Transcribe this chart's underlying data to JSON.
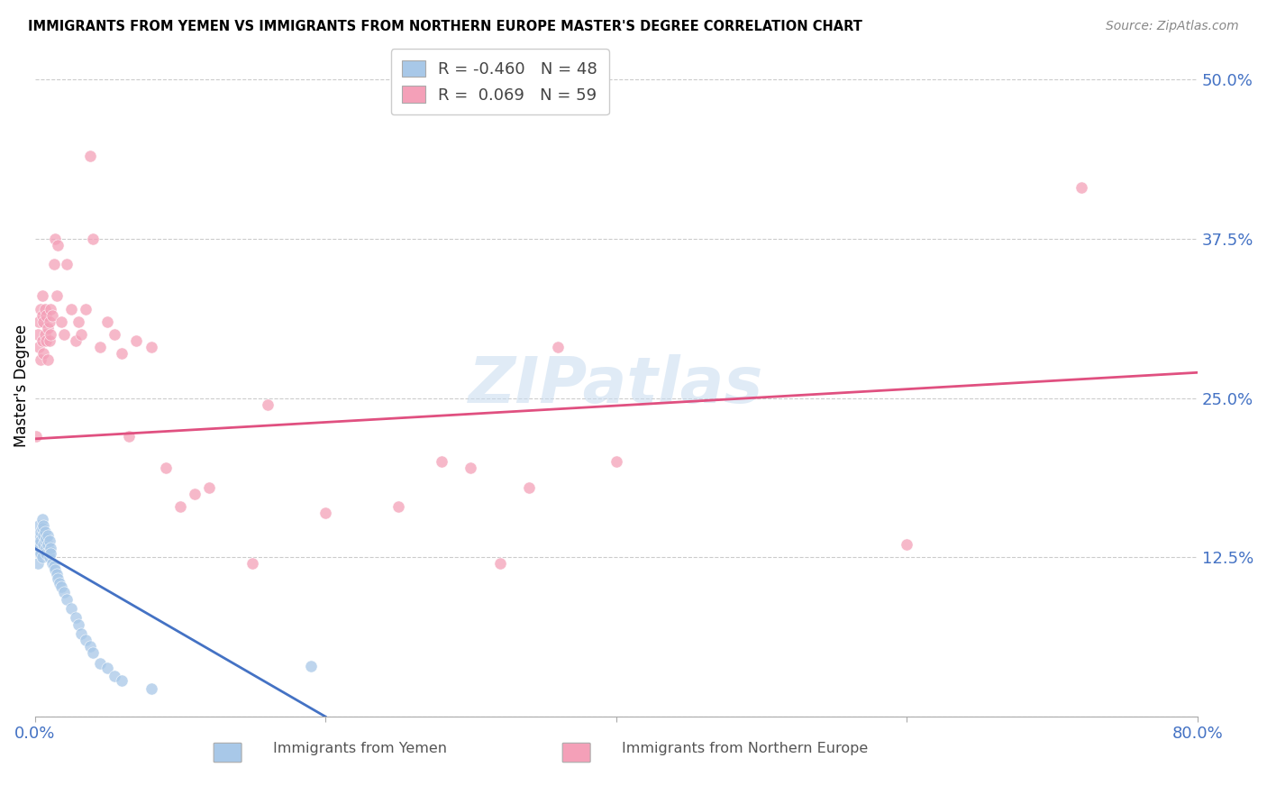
{
  "title": "IMMIGRANTS FROM YEMEN VS IMMIGRANTS FROM NORTHERN EUROPE MASTER'S DEGREE CORRELATION CHART",
  "source": "Source: ZipAtlas.com",
  "ylabel": "Master's Degree",
  "color_blue": "#A8C8E8",
  "color_pink": "#F4A0B8",
  "color_blue_line": "#4472C4",
  "color_pink_line": "#E05080",
  "color_axis_labels": "#4472C4",
  "xlim": [
    0.0,
    0.8
  ],
  "ylim": [
    0.0,
    0.52
  ],
  "yemen_x": [
    0.001,
    0.002,
    0.002,
    0.003,
    0.003,
    0.004,
    0.004,
    0.004,
    0.005,
    0.005,
    0.005,
    0.006,
    0.006,
    0.006,
    0.007,
    0.007,
    0.008,
    0.008,
    0.008,
    0.009,
    0.009,
    0.01,
    0.01,
    0.01,
    0.011,
    0.011,
    0.012,
    0.013,
    0.014,
    0.015,
    0.016,
    0.017,
    0.018,
    0.02,
    0.022,
    0.025,
    0.028,
    0.03,
    0.032,
    0.035,
    0.038,
    0.04,
    0.045,
    0.05,
    0.055,
    0.06,
    0.08,
    0.19
  ],
  "yemen_y": [
    0.13,
    0.14,
    0.12,
    0.15,
    0.135,
    0.145,
    0.128,
    0.138,
    0.155,
    0.148,
    0.125,
    0.142,
    0.135,
    0.15,
    0.138,
    0.145,
    0.132,
    0.14,
    0.128,
    0.135,
    0.142,
    0.13,
    0.138,
    0.125,
    0.132,
    0.128,
    0.12,
    0.118,
    0.115,
    0.112,
    0.108,
    0.105,
    0.102,
    0.098,
    0.092,
    0.085,
    0.078,
    0.072,
    0.065,
    0.06,
    0.055,
    0.05,
    0.042,
    0.038,
    0.032,
    0.028,
    0.022,
    0.04
  ],
  "ne_x": [
    0.001,
    0.002,
    0.003,
    0.003,
    0.004,
    0.004,
    0.005,
    0.005,
    0.005,
    0.006,
    0.006,
    0.007,
    0.007,
    0.008,
    0.008,
    0.009,
    0.009,
    0.01,
    0.01,
    0.011,
    0.011,
    0.012,
    0.013,
    0.014,
    0.015,
    0.016,
    0.018,
    0.02,
    0.022,
    0.025,
    0.028,
    0.03,
    0.032,
    0.035,
    0.038,
    0.04,
    0.045,
    0.05,
    0.055,
    0.06,
    0.065,
    0.07,
    0.08,
    0.09,
    0.1,
    0.11,
    0.12,
    0.15,
    0.16,
    0.2,
    0.25,
    0.28,
    0.3,
    0.32,
    0.34,
    0.36,
    0.4,
    0.6,
    0.72
  ],
  "ne_y": [
    0.22,
    0.3,
    0.31,
    0.29,
    0.32,
    0.28,
    0.33,
    0.295,
    0.315,
    0.285,
    0.31,
    0.3,
    0.32,
    0.295,
    0.315,
    0.305,
    0.28,
    0.31,
    0.295,
    0.32,
    0.3,
    0.315,
    0.355,
    0.375,
    0.33,
    0.37,
    0.31,
    0.3,
    0.355,
    0.32,
    0.295,
    0.31,
    0.3,
    0.32,
    0.44,
    0.375,
    0.29,
    0.31,
    0.3,
    0.285,
    0.22,
    0.295,
    0.29,
    0.195,
    0.165,
    0.175,
    0.18,
    0.12,
    0.245,
    0.16,
    0.165,
    0.2,
    0.195,
    0.12,
    0.18,
    0.29,
    0.2,
    0.135,
    0.415
  ],
  "blue_line_x0": 0.0,
  "blue_line_y0": 0.132,
  "blue_line_x1": 0.2,
  "blue_line_y1": 0.0,
  "pink_line_x0": 0.0,
  "pink_line_y0": 0.218,
  "pink_line_x1": 0.8,
  "pink_line_y1": 0.27
}
